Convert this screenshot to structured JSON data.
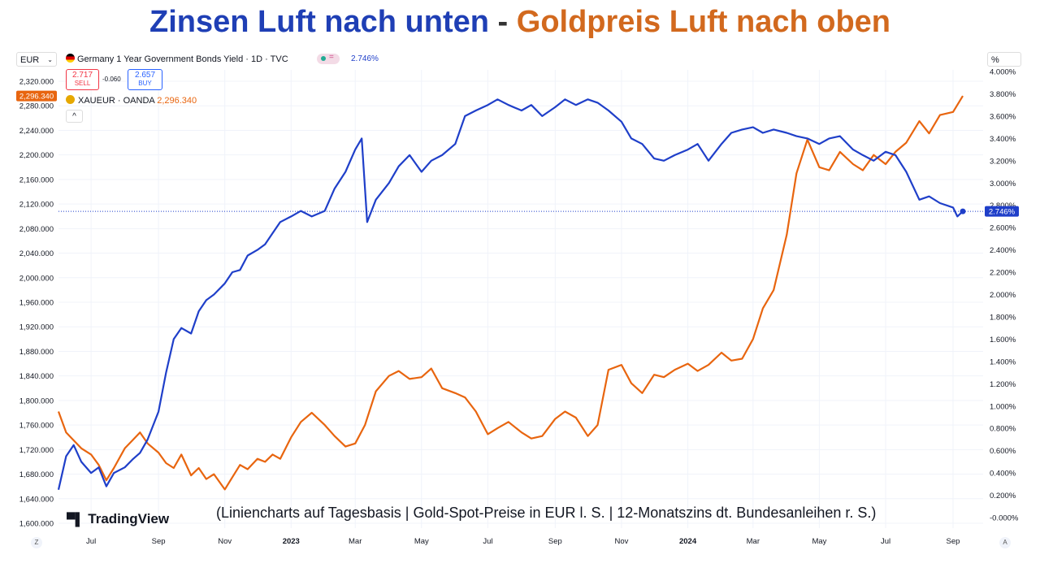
{
  "headline": {
    "left": "Zinsen Luft nach unten",
    "separator": "-",
    "right": "Goldpreis Luft nach oben"
  },
  "header": {
    "currency": "EUR",
    "pct_unit": "%",
    "bond_title": "Germany 1 Year Government Bonds Yield · 1D · TVC",
    "bond_value": "2.746%",
    "sell_price": "2.717",
    "sell_label": "SELL",
    "spread": "-0.060",
    "buy_price": "2.657",
    "buy_label": "BUY",
    "gold_title": "XAUEUR · OANDA",
    "gold_value": "2,296.340",
    "gold_tag": "2,296.340",
    "bond_tag": "2.746%",
    "collapse": "^",
    "z_button": "Z",
    "a_button": "A"
  },
  "caption": "(Liniencharts auf Tagesbasis | Gold-Spot-Preise in EUR l. S.  | 12-Monatszins dt. Bundesanleihen r. S.)",
  "brand": "TradingView",
  "colors": {
    "gold": "#e8650f",
    "bond": "#1f3fc9",
    "title_blue": "#1f3fb5",
    "title_orange": "#d2691e"
  },
  "chart_data": {
    "type": "line",
    "x_ticks": [
      "Jul",
      "Sep",
      "Nov",
      "2023",
      "Mar",
      "May",
      "Jul",
      "Sep",
      "Nov",
      "2024",
      "Mar",
      "May",
      "Jul",
      "Sep"
    ],
    "y_left_ticks": [
      "2,320.000",
      "2,280.000",
      "2,240.000",
      "2,200.000",
      "2,160.000",
      "2,120.000",
      "2,080.000",
      "2,040.000",
      "2,000.000",
      "1,960.000",
      "1,920.000",
      "1,880.000",
      "1,840.000",
      "1,800.000",
      "1,760.000",
      "1,720.000",
      "1,680.000",
      "1,640.000",
      "1,600.000"
    ],
    "y_right_ticks": [
      "4.000%",
      "3.800%",
      "3.600%",
      "3.400%",
      "3.200%",
      "3.000%",
      "2.800%",
      "2.600%",
      "2.400%",
      "2.200%",
      "2.000%",
      "1.800%",
      "1.600%",
      "1.400%",
      "1.200%",
      "1.000%",
      "0.800%",
      "0.600%",
      "0.400%",
      "0.200%",
      "-0.000%"
    ],
    "y_left_range": [
      1600,
      2320
    ],
    "y_right_range": [
      0.0,
      4.0
    ],
    "x_range": [
      "2022-06-01",
      "2024-09-10"
    ],
    "series": [
      {
        "name": "XAUEUR · OANDA",
        "axis": "left",
        "points": [
          [
            "2022-06-01",
            1782
          ],
          [
            "2022-06-08",
            1748
          ],
          [
            "2022-06-15",
            1735
          ],
          [
            "2022-06-22",
            1722
          ],
          [
            "2022-07-01",
            1712
          ],
          [
            "2022-07-08",
            1695
          ],
          [
            "2022-07-15",
            1670
          ],
          [
            "2022-07-22",
            1690
          ],
          [
            "2022-08-01",
            1722
          ],
          [
            "2022-08-08",
            1735
          ],
          [
            "2022-08-15",
            1748
          ],
          [
            "2022-08-22",
            1730
          ],
          [
            "2022-09-01",
            1715
          ],
          [
            "2022-09-08",
            1698
          ],
          [
            "2022-09-15",
            1690
          ],
          [
            "2022-09-22",
            1712
          ],
          [
            "2022-10-01",
            1678
          ],
          [
            "2022-10-08",
            1690
          ],
          [
            "2022-10-15",
            1672
          ],
          [
            "2022-10-22",
            1680
          ],
          [
            "2022-11-01",
            1655
          ],
          [
            "2022-11-08",
            1675
          ],
          [
            "2022-11-15",
            1695
          ],
          [
            "2022-11-22",
            1688
          ],
          [
            "2022-12-01",
            1705
          ],
          [
            "2022-12-08",
            1700
          ],
          [
            "2022-12-15",
            1712
          ],
          [
            "2022-12-22",
            1705
          ],
          [
            "2023-01-01",
            1740
          ],
          [
            "2023-01-10",
            1765
          ],
          [
            "2023-01-20",
            1780
          ],
          [
            "2023-02-01",
            1760
          ],
          [
            "2023-02-10",
            1742
          ],
          [
            "2023-02-20",
            1725
          ],
          [
            "2023-03-01",
            1730
          ],
          [
            "2023-03-10",
            1760
          ],
          [
            "2023-03-20",
            1815
          ],
          [
            "2023-04-01",
            1840
          ],
          [
            "2023-04-10",
            1848
          ],
          [
            "2023-04-20",
            1835
          ],
          [
            "2023-05-01",
            1838
          ],
          [
            "2023-05-10",
            1852
          ],
          [
            "2023-05-20",
            1820
          ],
          [
            "2023-06-01",
            1812
          ],
          [
            "2023-06-10",
            1805
          ],
          [
            "2023-06-20",
            1782
          ],
          [
            "2023-07-01",
            1745
          ],
          [
            "2023-07-10",
            1755
          ],
          [
            "2023-07-20",
            1765
          ],
          [
            "2023-08-01",
            1748
          ],
          [
            "2023-08-10",
            1738
          ],
          [
            "2023-08-20",
            1742
          ],
          [
            "2023-09-01",
            1770
          ],
          [
            "2023-09-10",
            1782
          ],
          [
            "2023-09-20",
            1772
          ],
          [
            "2023-10-01",
            1742
          ],
          [
            "2023-10-10",
            1760
          ],
          [
            "2023-10-20",
            1850
          ],
          [
            "2023-11-01",
            1858
          ],
          [
            "2023-11-10",
            1828
          ],
          [
            "2023-11-20",
            1812
          ],
          [
            "2023-12-01",
            1842
          ],
          [
            "2023-12-10",
            1838
          ],
          [
            "2023-12-20",
            1850
          ],
          [
            "2024-01-01",
            1860
          ],
          [
            "2024-01-10",
            1848
          ],
          [
            "2024-01-20",
            1858
          ],
          [
            "2024-02-01",
            1878
          ],
          [
            "2024-02-10",
            1865
          ],
          [
            "2024-02-20",
            1868
          ],
          [
            "2024-03-01",
            1900
          ],
          [
            "2024-03-10",
            1950
          ],
          [
            "2024-03-20",
            1980
          ],
          [
            "2024-04-01",
            2070
          ],
          [
            "2024-04-10",
            2170
          ],
          [
            "2024-04-20",
            2225
          ],
          [
            "2024-05-01",
            2180
          ],
          [
            "2024-05-10",
            2175
          ],
          [
            "2024-05-20",
            2205
          ],
          [
            "2024-06-01",
            2185
          ],
          [
            "2024-06-10",
            2175
          ],
          [
            "2024-06-20",
            2200
          ],
          [
            "2024-07-01",
            2185
          ],
          [
            "2024-07-10",
            2205
          ],
          [
            "2024-07-20",
            2220
          ],
          [
            "2024-08-01",
            2255
          ],
          [
            "2024-08-10",
            2235
          ],
          [
            "2024-08-20",
            2265
          ],
          [
            "2024-09-01",
            2270
          ],
          [
            "2024-09-10",
            2296
          ]
        ]
      },
      {
        "name": "Germany 1 Year Government Bonds Yield · 1D · TVC",
        "axis": "right",
        "points": [
          [
            "2022-06-01",
            0.25
          ],
          [
            "2022-06-08",
            0.55
          ],
          [
            "2022-06-15",
            0.65
          ],
          [
            "2022-06-22",
            0.5
          ],
          [
            "2022-07-01",
            0.4
          ],
          [
            "2022-07-08",
            0.45
          ],
          [
            "2022-07-15",
            0.28
          ],
          [
            "2022-07-22",
            0.4
          ],
          [
            "2022-08-01",
            0.45
          ],
          [
            "2022-08-08",
            0.52
          ],
          [
            "2022-08-15",
            0.58
          ],
          [
            "2022-08-22",
            0.7
          ],
          [
            "2022-09-01",
            0.95
          ],
          [
            "2022-09-08",
            1.3
          ],
          [
            "2022-09-15",
            1.6
          ],
          [
            "2022-09-22",
            1.7
          ],
          [
            "2022-10-01",
            1.65
          ],
          [
            "2022-10-08",
            1.85
          ],
          [
            "2022-10-15",
            1.95
          ],
          [
            "2022-10-22",
            2.0
          ],
          [
            "2022-11-01",
            2.1
          ],
          [
            "2022-11-08",
            2.2
          ],
          [
            "2022-11-15",
            2.22
          ],
          [
            "2022-11-22",
            2.35
          ],
          [
            "2022-12-01",
            2.4
          ],
          [
            "2022-12-08",
            2.45
          ],
          [
            "2022-12-15",
            2.55
          ],
          [
            "2022-12-22",
            2.65
          ],
          [
            "2023-01-01",
            2.7
          ],
          [
            "2023-01-10",
            2.75
          ],
          [
            "2023-01-20",
            2.7
          ],
          [
            "2023-02-01",
            2.75
          ],
          [
            "2023-02-10",
            2.95
          ],
          [
            "2023-02-20",
            3.1
          ],
          [
            "2023-03-01",
            3.3
          ],
          [
            "2023-03-07",
            3.4
          ],
          [
            "2023-03-12",
            2.65
          ],
          [
            "2023-03-20",
            2.85
          ],
          [
            "2023-04-01",
            3.0
          ],
          [
            "2023-04-10",
            3.15
          ],
          [
            "2023-04-20",
            3.25
          ],
          [
            "2023-05-01",
            3.1
          ],
          [
            "2023-05-10",
            3.2
          ],
          [
            "2023-05-20",
            3.25
          ],
          [
            "2023-06-01",
            3.35
          ],
          [
            "2023-06-10",
            3.6
          ],
          [
            "2023-06-20",
            3.65
          ],
          [
            "2023-07-01",
            3.7
          ],
          [
            "2023-07-10",
            3.75
          ],
          [
            "2023-07-20",
            3.7
          ],
          [
            "2023-08-01",
            3.65
          ],
          [
            "2023-08-10",
            3.7
          ],
          [
            "2023-08-20",
            3.6
          ],
          [
            "2023-09-01",
            3.68
          ],
          [
            "2023-09-10",
            3.75
          ],
          [
            "2023-09-20",
            3.7
          ],
          [
            "2023-10-01",
            3.75
          ],
          [
            "2023-10-10",
            3.72
          ],
          [
            "2023-10-20",
            3.65
          ],
          [
            "2023-11-01",
            3.55
          ],
          [
            "2023-11-10",
            3.4
          ],
          [
            "2023-11-20",
            3.35
          ],
          [
            "2023-12-01",
            3.22
          ],
          [
            "2023-12-10",
            3.2
          ],
          [
            "2023-12-20",
            3.25
          ],
          [
            "2024-01-01",
            3.3
          ],
          [
            "2024-01-10",
            3.35
          ],
          [
            "2024-01-20",
            3.2
          ],
          [
            "2024-02-01",
            3.35
          ],
          [
            "2024-02-10",
            3.45
          ],
          [
            "2024-02-20",
            3.48
          ],
          [
            "2024-03-01",
            3.5
          ],
          [
            "2024-03-10",
            3.45
          ],
          [
            "2024-03-20",
            3.48
          ],
          [
            "2024-04-01",
            3.45
          ],
          [
            "2024-04-10",
            3.42
          ],
          [
            "2024-04-20",
            3.4
          ],
          [
            "2024-05-01",
            3.35
          ],
          [
            "2024-05-10",
            3.4
          ],
          [
            "2024-05-20",
            3.42
          ],
          [
            "2024-06-01",
            3.3
          ],
          [
            "2024-06-10",
            3.25
          ],
          [
            "2024-06-20",
            3.2
          ],
          [
            "2024-07-01",
            3.28
          ],
          [
            "2024-07-10",
            3.25
          ],
          [
            "2024-07-20",
            3.1
          ],
          [
            "2024-08-01",
            2.85
          ],
          [
            "2024-08-10",
            2.88
          ],
          [
            "2024-08-20",
            2.82
          ],
          [
            "2024-09-01",
            2.78
          ],
          [
            "2024-09-05",
            2.7
          ],
          [
            "2024-09-10",
            2.746
          ]
        ]
      }
    ]
  }
}
